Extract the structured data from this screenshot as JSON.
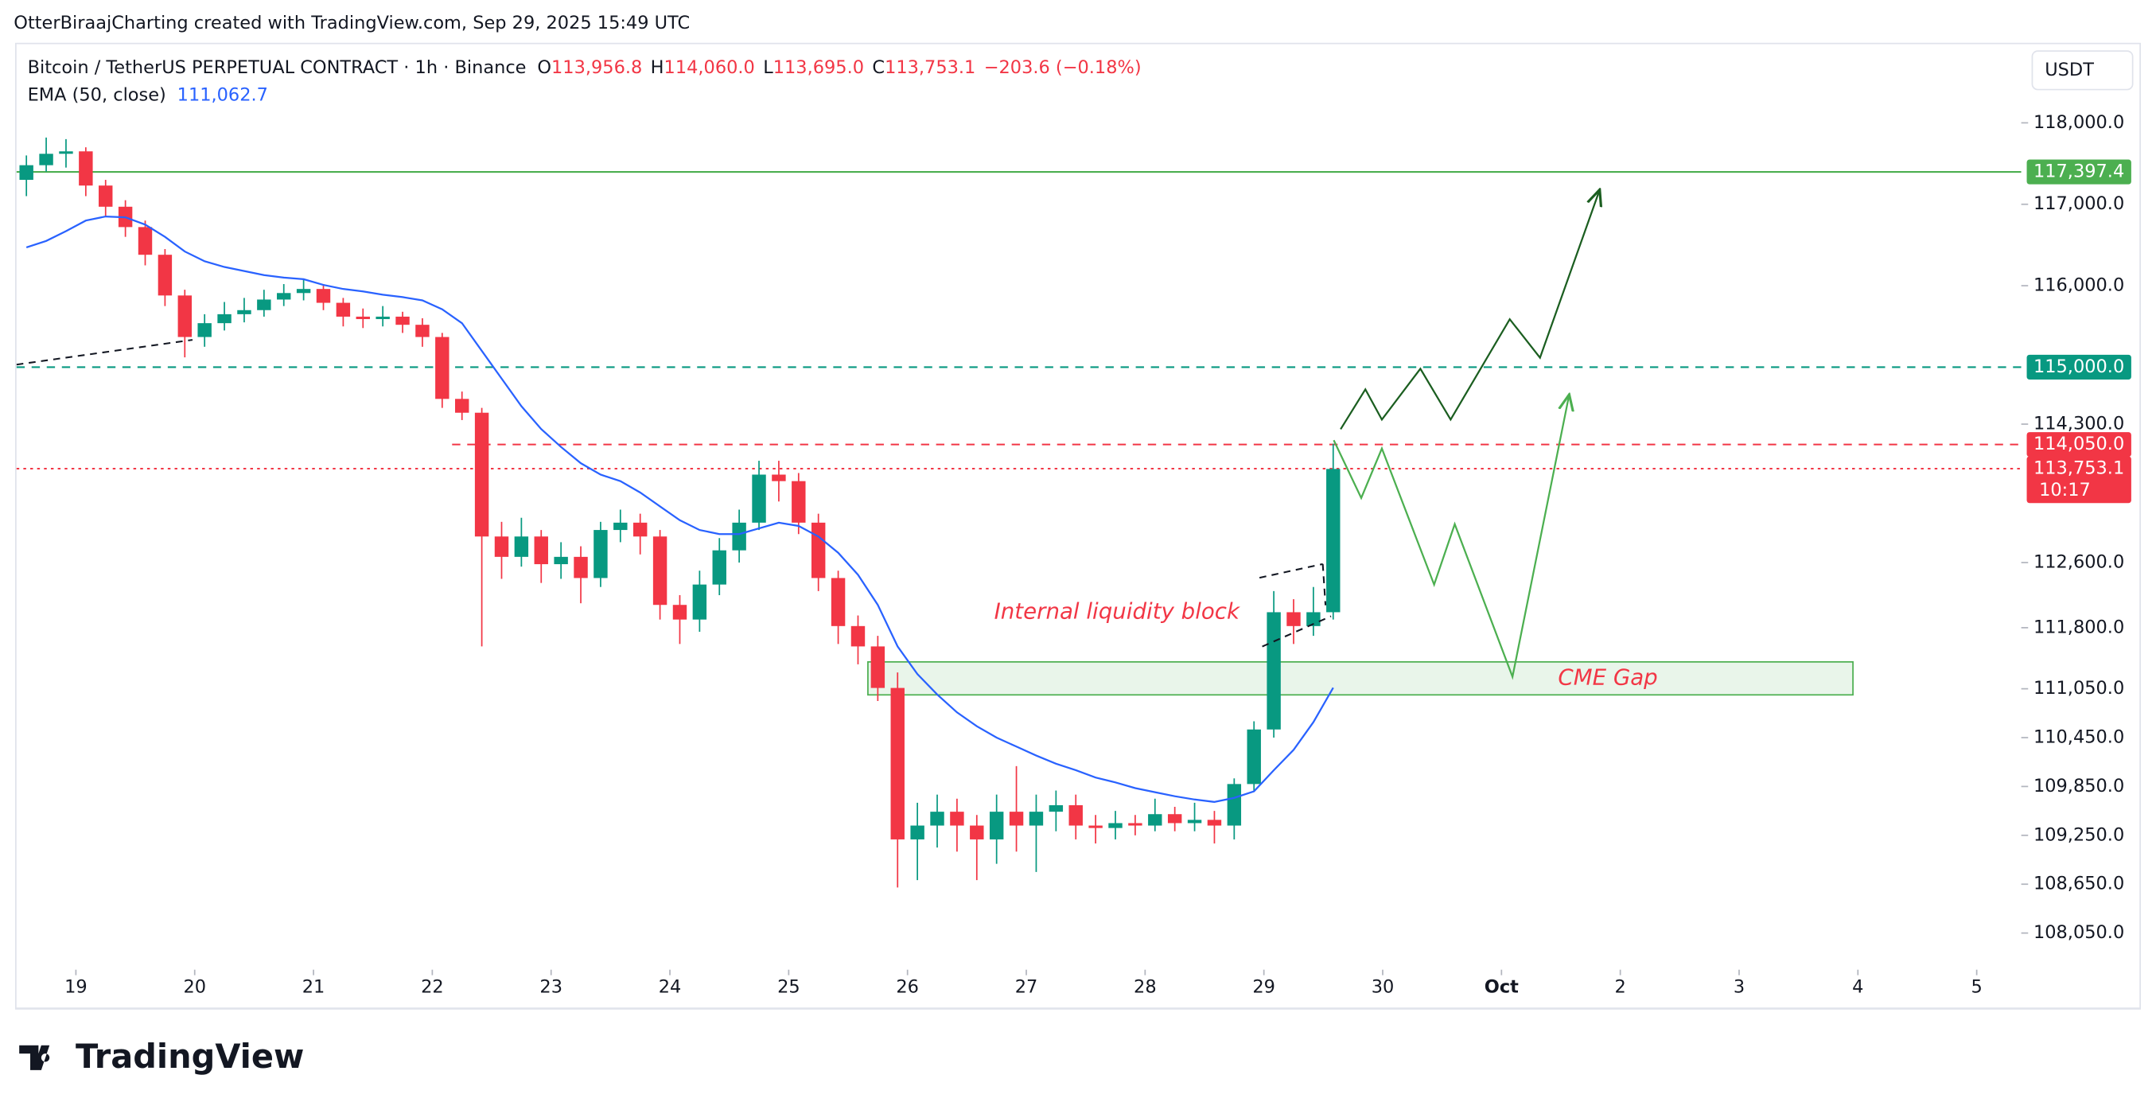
{
  "header": "OtterBiraajCharting created with TradingView.com, Sep 29, 2025 15:49 UTC",
  "footer_logo": "TradingView",
  "chart_data": {
    "type": "candlestick",
    "symbol": "Bitcoin / TetherUS PERPETUAL CONTRACT · 1h · Binance",
    "ohlc_legend": [
      {
        "key": "O",
        "text": "113,956.8"
      },
      {
        "key": "H",
        "text": "114,060.0"
      },
      {
        "key": "L",
        "text": "113,695.0"
      },
      {
        "key": "C",
        "text": "113,753.1"
      }
    ],
    "change": "−203.6 (−0.18%)",
    "currency": "USDT",
    "up_color": "#089981",
    "down_color": "#f23645",
    "x": [
      "2025-09-18T12:00",
      "2025-09-18T16:00",
      "2025-09-18T20:00",
      "2025-09-19T00:00",
      "2025-09-19T04:00",
      "2025-09-19T08:00",
      "2025-09-19T12:00",
      "2025-09-19T16:00",
      "2025-09-19T20:00",
      "2025-09-20T00:00",
      "2025-09-20T04:00",
      "2025-09-20T08:00",
      "2025-09-20T12:00",
      "2025-09-20T16:00",
      "2025-09-20T20:00",
      "2025-09-21T00:00",
      "2025-09-21T04:00",
      "2025-09-21T08:00",
      "2025-09-21T12:00",
      "2025-09-21T16:00",
      "2025-09-21T20:00",
      "2025-09-22T00:00",
      "2025-09-22T04:00",
      "2025-09-22T08:00",
      "2025-09-22T12:00",
      "2025-09-22T16:00",
      "2025-09-22T20:00",
      "2025-09-23T00:00",
      "2025-09-23T04:00",
      "2025-09-23T08:00",
      "2025-09-23T12:00",
      "2025-09-23T16:00",
      "2025-09-23T20:00",
      "2025-09-24T00:00",
      "2025-09-24T04:00",
      "2025-09-24T08:00",
      "2025-09-24T12:00",
      "2025-09-24T16:00",
      "2025-09-24T20:00",
      "2025-09-25T00:00",
      "2025-09-25T04:00",
      "2025-09-25T08:00",
      "2025-09-25T12:00",
      "2025-09-25T16:00",
      "2025-09-25T20:00",
      "2025-09-26T00:00",
      "2025-09-26T04:00",
      "2025-09-26T08:00",
      "2025-09-26T12:00",
      "2025-09-26T16:00",
      "2025-09-26T20:00",
      "2025-09-27T00:00",
      "2025-09-27T04:00",
      "2025-09-27T08:00",
      "2025-09-27T12:00",
      "2025-09-27T16:00",
      "2025-09-27T20:00",
      "2025-09-28T00:00",
      "2025-09-28T04:00",
      "2025-09-28T08:00",
      "2025-09-28T12:00",
      "2025-09-28T16:00",
      "2025-09-28T20:00",
      "2025-09-29T00:00",
      "2025-09-29T04:00",
      "2025-09-29T08:00",
      "2025-09-29T12:00"
    ],
    "open": [
      117300,
      117480,
      117620,
      117650,
      117230,
      116970,
      116720,
      116380,
      115880,
      115370,
      115540,
      115650,
      115700,
      115830,
      115910,
      115960,
      115790,
      115620,
      115590,
      115620,
      115520,
      115370,
      114610,
      114440,
      112920,
      112670,
      112920,
      112580,
      112670,
      112410,
      113000,
      113090,
      112920,
      112080,
      111900,
      112330,
      112750,
      113090,
      113680,
      113600,
      113090,
      112410,
      111820,
      111570,
      111060,
      109200,
      109370,
      109540,
      109370,
      109200,
      109540,
      109370,
      109540,
      109620,
      109370,
      109340,
      109400,
      109370,
      109510,
      109400,
      109440,
      109370,
      109880,
      110550,
      111990,
      111820,
      111990
    ],
    "high": [
      117600,
      117820,
      117800,
      117700,
      117300,
      117050,
      116800,
      116450,
      115950,
      115650,
      115800,
      115850,
      115950,
      116020,
      116080,
      116020,
      115850,
      115720,
      115750,
      115680,
      115600,
      115420,
      114700,
      114500,
      113100,
      113150,
      113000,
      112850,
      112800,
      113100,
      113250,
      113200,
      113000,
      112200,
      112500,
      112900,
      113250,
      113850,
      113850,
      113700,
      113200,
      112500,
      111950,
      111700,
      111250,
      109650,
      109750,
      109700,
      109500,
      109750,
      110100,
      109750,
      109800,
      109750,
      109500,
      109550,
      109500,
      109700,
      109600,
      109650,
      109550,
      109950,
      110650,
      112250,
      112150,
      112300,
      114060
    ],
    "low": [
      117100,
      117400,
      117450,
      117100,
      116850,
      116600,
      116250,
      115750,
      115120,
      115250,
      115450,
      115550,
      115620,
      115750,
      115820,
      115700,
      115500,
      115480,
      115500,
      115420,
      115250,
      114500,
      114350,
      111570,
      112400,
      112550,
      112350,
      112400,
      112100,
      112300,
      112850,
      112700,
      111900,
      111600,
      111750,
      112200,
      112600,
      113000,
      113350,
      112950,
      112250,
      111600,
      111350,
      110900,
      108610,
      108700,
      109100,
      109050,
      108700,
      108900,
      109050,
      108800,
      109300,
      109200,
      109150,
      109200,
      109250,
      109300,
      109300,
      109300,
      109150,
      109200,
      109800,
      110450,
      111600,
      111700,
      111900
    ],
    "close": [
      117480,
      117620,
      117650,
      117230,
      116970,
      116720,
      116380,
      115880,
      115370,
      115540,
      115650,
      115700,
      115830,
      115910,
      115960,
      115790,
      115620,
      115590,
      115620,
      115520,
      115370,
      114610,
      114440,
      112920,
      112670,
      112920,
      112580,
      112670,
      112410,
      113000,
      113090,
      112920,
      112080,
      111900,
      112330,
      112750,
      113090,
      113680,
      113600,
      113090,
      112410,
      111820,
      111570,
      111060,
      109200,
      109370,
      109540,
      109370,
      109200,
      109540,
      109370,
      109540,
      109620,
      109370,
      109340,
      109400,
      109370,
      109510,
      109400,
      109440,
      109370,
      109880,
      110550,
      111990,
      111820,
      111990,
      113750
    ],
    "ema": {
      "name": "EMA (50, close)",
      "last_label": "111,062.7",
      "color": "#2962ff",
      "values": [
        116470,
        116550,
        116670,
        116800,
        116850,
        116840,
        116750,
        116600,
        116420,
        116300,
        116230,
        116180,
        116130,
        116100,
        116080,
        116010,
        115960,
        115930,
        115890,
        115860,
        115820,
        115710,
        115540,
        115200,
        114860,
        114520,
        114240,
        114020,
        113820,
        113680,
        113600,
        113460,
        113290,
        113120,
        113000,
        112950,
        112950,
        113020,
        113090,
        113050,
        112920,
        112720,
        112450,
        112080,
        111570,
        111230,
        110980,
        110760,
        110590,
        110450,
        110340,
        110230,
        110130,
        110050,
        109960,
        109900,
        109830,
        109780,
        109730,
        109690,
        109660,
        109710,
        109790,
        110050,
        110300,
        110640,
        111062.7
      ]
    },
    "levels": [
      {
        "value": 117397.4,
        "label": "117,397.4",
        "color": "#4caf50",
        "style": "solid"
      },
      {
        "value": 115000,
        "label": "115,000.0",
        "color": "#089981",
        "style": "dashed"
      },
      {
        "value": 114050,
        "label": "114,050.0",
        "color": "#f23645",
        "style": "dashed",
        "start": "2025-09-22T04:00"
      },
      {
        "value": 113753.1,
        "label": "113,753.1",
        "color": "#f23645",
        "style": "dotted",
        "countdown": "10:17"
      }
    ],
    "zone": {
      "label": "CME Gap",
      "low": 110975,
      "high": 111380,
      "start": "2025-09-25T16:00",
      "end": "2025-10-03T23:00",
      "color": "#4caf50"
    },
    "annotation": "Internal liquidity block",
    "xlim": [
      "2025-09-18T12:00",
      "2025-10-05T09:00"
    ],
    "xticks": [
      {
        "value": "2025-09-19T00:00",
        "label": "19"
      },
      {
        "value": "2025-09-20T00:00",
        "label": "20"
      },
      {
        "value": "2025-09-21T00:00",
        "label": "21"
      },
      {
        "value": "2025-09-22T00:00",
        "label": "22"
      },
      {
        "value": "2025-09-23T00:00",
        "label": "23"
      },
      {
        "value": "2025-09-24T00:00",
        "label": "24"
      },
      {
        "value": "2025-09-25T00:00",
        "label": "25"
      },
      {
        "value": "2025-09-26T00:00",
        "label": "26"
      },
      {
        "value": "2025-09-27T00:00",
        "label": "27"
      },
      {
        "value": "2025-09-28T00:00",
        "label": "28"
      },
      {
        "value": "2025-09-29T00:00",
        "label": "29"
      },
      {
        "value": "2025-09-30T00:00",
        "label": "30"
      },
      {
        "value": "2025-10-01T00:00",
        "label": "Oct"
      },
      {
        "value": "2025-10-02T00:00",
        "label": "2"
      },
      {
        "value": "2025-10-03T00:00",
        "label": "3"
      },
      {
        "value": "2025-10-04T00:00",
        "label": "4"
      },
      {
        "value": "2025-10-05T00:00",
        "label": "5"
      }
    ],
    "ylim": [
      107600,
      119000
    ],
    "yticks": [
      {
        "value": 108050,
        "label": "108,050.0"
      },
      {
        "value": 108650,
        "label": "108,650.0"
      },
      {
        "value": 109250,
        "label": "109,250.0"
      },
      {
        "value": 109850,
        "label": "109,850.0"
      },
      {
        "value": 110450,
        "label": "110,450.0"
      },
      {
        "value": 111050,
        "label": "111,050.0"
      },
      {
        "value": 111800,
        "label": "111,800.0"
      },
      {
        "value": 112600,
        "label": "112,600.0"
      },
      {
        "value": 114300,
        "label": "114,300.0"
      },
      {
        "value": 116000,
        "label": "116,000.0"
      },
      {
        "value": 117000,
        "label": "117,000.0"
      },
      {
        "value": 118000,
        "label": "118,000.0"
      }
    ],
    "grid": false
  }
}
